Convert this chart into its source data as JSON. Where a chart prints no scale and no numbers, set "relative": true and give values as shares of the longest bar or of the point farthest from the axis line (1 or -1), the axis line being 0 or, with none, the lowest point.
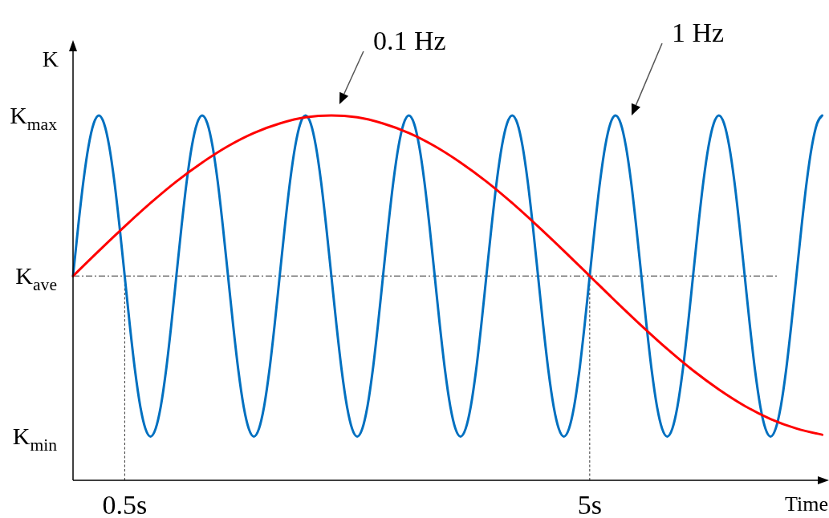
{
  "chart_data": {
    "type": "line",
    "xlabel": "Time",
    "ylabel": "K",
    "relative": true,
    "xlim": [
      0,
      7.3
    ],
    "xticks": [
      {
        "value": 0.5,
        "label": "0.5s"
      },
      {
        "value": 5,
        "label": "5s"
      }
    ],
    "annotations": [
      "K$_{max}$",
      "K$_{ave}$",
      "K$_{min}$"
    ],
    "ref_lines": [
      {
        "axis": "y",
        "value": 0.56,
        "line_style": "dashed"
      },
      {
        "axis": "x",
        "value": 0.5,
        "line_style": "dotted"
      },
      {
        "axis": "x",
        "value": 5,
        "line_style": "dotted"
      }
    ],
    "series": [
      {
        "name": "1 Hz",
        "color": "#0070c0",
        "x": [
          0,
          0.05,
          0.1,
          0.15,
          0.2,
          0.25,
          0.3,
          0.35,
          0.4,
          0.45,
          0.5,
          0.55,
          0.6,
          0.65,
          0.7,
          0.75,
          0.8,
          0.85,
          0.9,
          0.95,
          1,
          1.05,
          1.1,
          1.15,
          1.2,
          1.25,
          1.3,
          1.35,
          1.4,
          1.45,
          1.5,
          1.55,
          1.6,
          1.65,
          1.7,
          1.75,
          1.8,
          1.85,
          1.9,
          1.95,
          2,
          2.05,
          2.1,
          2.15,
          2.2,
          2.25,
          2.3,
          2.35,
          2.4,
          2.45,
          2.5,
          2.55,
          2.6,
          2.65,
          2.7,
          2.75,
          2.8,
          2.85,
          2.9,
          2.95,
          3,
          3.05,
          3.1,
          3.15,
          3.2,
          3.25,
          3.3,
          3.35,
          3.4,
          3.45,
          3.5,
          3.55,
          3.6,
          3.65,
          3.7,
          3.75,
          3.8,
          3.85,
          3.9,
          3.95,
          4,
          4.05,
          4.1,
          4.15,
          4.2,
          4.25,
          4.3,
          4.35,
          4.4,
          4.45,
          4.5,
          4.55,
          4.6,
          4.65,
          4.7,
          4.75,
          4.8,
          4.85,
          4.9,
          4.95,
          5,
          5.05,
          5.1,
          5.15,
          5.2,
          5.25,
          5.3,
          5.35,
          5.4,
          5.45,
          5.5,
          5.55,
          5.6,
          5.65,
          5.7,
          5.75,
          5.8,
          5.85,
          5.9,
          5.95,
          6,
          6.05,
          6.1,
          6.15,
          6.2,
          6.25,
          6.3,
          6.35,
          6.4,
          6.45,
          6.5,
          6.55,
          6.6,
          6.65,
          6.7,
          6.75,
          6.8,
          6.85,
          6.9,
          6.95,
          7,
          7.05,
          7.1,
          7.15,
          7.2,
          7.25
        ],
        "values": [
          0.56,
          0.696,
          0.819,
          0.916,
          0.978,
          1,
          0.978,
          0.916,
          0.819,
          0.696,
          0.56,
          0.424,
          0.301,
          0.204,
          0.142,
          0.12,
          0.142,
          0.204,
          0.301,
          0.424,
          0.56,
          0.696,
          0.819,
          0.916,
          0.978,
          1,
          0.978,
          0.916,
          0.819,
          0.696,
          0.56,
          0.424,
          0.301,
          0.204,
          0.142,
          0.12,
          0.142,
          0.204,
          0.301,
          0.424,
          0.56,
          0.696,
          0.819,
          0.916,
          0.978,
          1,
          0.978,
          0.916,
          0.819,
          0.696,
          0.56,
          0.424,
          0.301,
          0.204,
          0.142,
          0.12,
          0.142,
          0.204,
          0.301,
          0.424,
          0.56,
          0.696,
          0.819,
          0.916,
          0.978,
          1,
          0.978,
          0.916,
          0.819,
          0.696,
          0.56,
          0.424,
          0.301,
          0.204,
          0.142,
          0.12,
          0.142,
          0.204,
          0.301,
          0.424,
          0.56,
          0.696,
          0.819,
          0.916,
          0.978,
          1,
          0.978,
          0.916,
          0.819,
          0.696,
          0.56,
          0.424,
          0.301,
          0.204,
          0.142,
          0.12,
          0.142,
          0.204,
          0.301,
          0.424,
          0.56,
          0.696,
          0.819,
          0.916,
          0.978,
          1,
          0.978,
          0.916,
          0.819,
          0.696,
          0.56,
          0.424,
          0.301,
          0.204,
          0.142,
          0.12,
          0.142,
          0.204,
          0.301,
          0.424,
          0.56,
          0.696,
          0.819,
          0.916,
          0.978,
          1,
          0.978,
          0.916,
          0.819,
          0.696,
          0.56,
          0.424,
          0.301,
          0.204,
          0.142,
          0.12,
          0.142,
          0.204,
          0.301,
          0.424,
          0.56,
          0.696,
          0.819,
          0.916,
          0.978,
          1
        ]
      },
      {
        "name": "0.1 Hz",
        "color": "#ff0000",
        "x": [
          0,
          0.25,
          0.5,
          0.75,
          1,
          1.25,
          1.5,
          1.75,
          2,
          2.25,
          2.5,
          2.75,
          3,
          3.25,
          3.5,
          3.75,
          4,
          4.25,
          4.5,
          4.75,
          5,
          5.25,
          5.5,
          5.75,
          6,
          6.25,
          6.5,
          6.75,
          7,
          7.25
        ],
        "values": [
          0.56,
          0.629,
          0.696,
          0.76,
          0.819,
          0.871,
          0.916,
          0.952,
          0.978,
          0.995,
          1,
          0.995,
          0.978,
          0.952,
          0.916,
          0.871,
          0.819,
          0.76,
          0.696,
          0.629,
          0.56,
          0.491,
          0.424,
          0.36,
          0.301,
          0.249,
          0.204,
          0.168,
          0.142,
          0.125
        ]
      }
    ]
  }
}
